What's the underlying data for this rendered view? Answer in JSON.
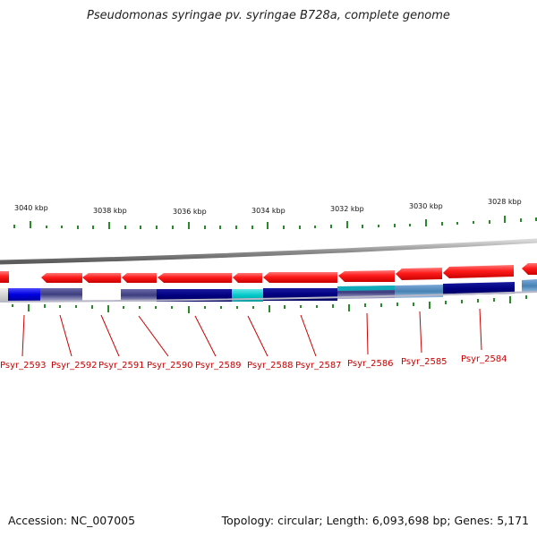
{
  "title": "Pseudomonas syringae pv. syringae B728a, complete genome",
  "footer": {
    "accession": "Accession: NC_007005",
    "stats": "Topology: circular; Length: 6,093,698 bp; Genes: 5,171"
  },
  "colors": {
    "forward_gene": "#ff1a1a",
    "tick": "#2a8a2a",
    "label": "#cc0000",
    "backbone": "#8c8c8c"
  },
  "kbp_labels": [
    "3040 kbp",
    "3038 kbp",
    "3036 kbp",
    "3034 kbp",
    "3032 kbp",
    "3030 kbp",
    "3028 kbp"
  ],
  "genes": [
    "Psyr_2593",
    "Psyr_2592",
    "Psyr_2591",
    "Psyr_2590",
    "Psyr_2589",
    "Psyr_2588",
    "Psyr_2587",
    "Psyr_2586",
    "Psyr_2585",
    "Psyr_2584"
  ]
}
